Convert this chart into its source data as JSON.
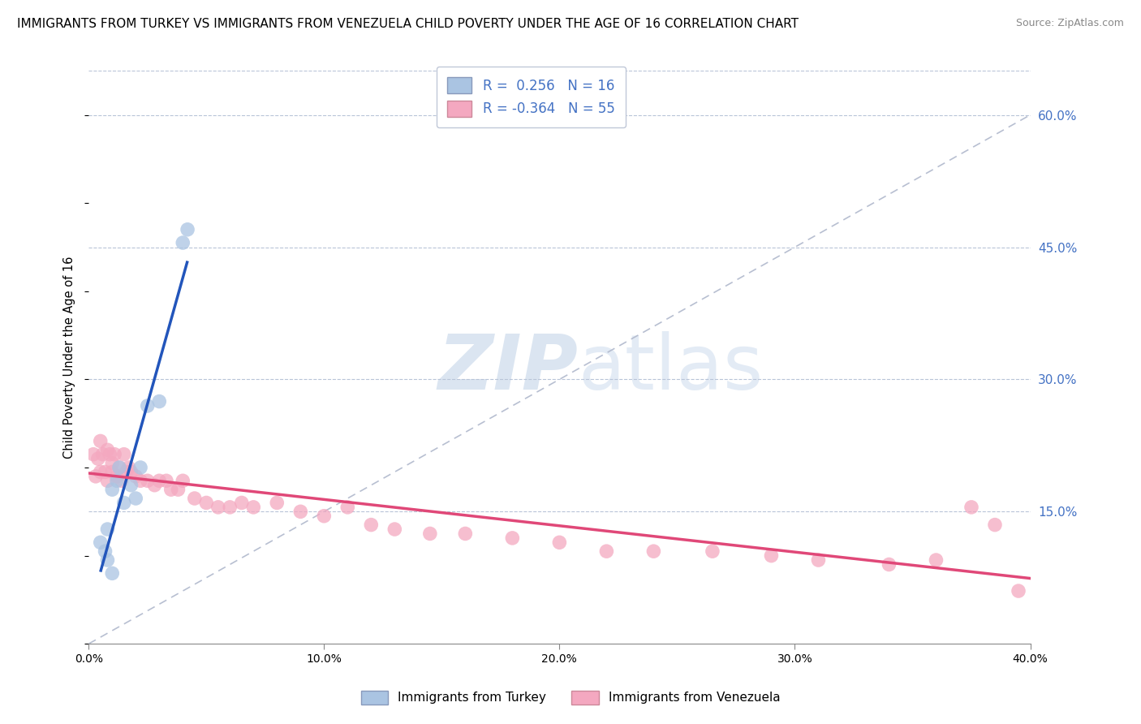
{
  "title": "IMMIGRANTS FROM TURKEY VS IMMIGRANTS FROM VENEZUELA CHILD POVERTY UNDER THE AGE OF 16 CORRELATION CHART",
  "source": "Source: ZipAtlas.com",
  "ylabel": "Child Poverty Under the Age of 16",
  "x_tick_labels": [
    "0.0%",
    "10.0%",
    "20.0%",
    "30.0%",
    "40.0%"
  ],
  "x_tick_values": [
    0.0,
    0.1,
    0.2,
    0.3,
    0.4
  ],
  "y_tick_labels": [
    "15.0%",
    "30.0%",
    "45.0%",
    "60.0%"
  ],
  "y_tick_values": [
    0.15,
    0.3,
    0.45,
    0.6
  ],
  "xlim": [
    0.0,
    0.4
  ],
  "ylim": [
    0.0,
    0.65
  ],
  "legend_labels": [
    "Immigrants from Turkey",
    "Immigrants from Venezuela"
  ],
  "legend_r_values": [
    "R =  0.256",
    "R = -0.364"
  ],
  "legend_n_values": [
    "N = 16",
    "N = 55"
  ],
  "turkey_color": "#aac4e2",
  "venezuela_color": "#f4a8c0",
  "turkey_line_color": "#2255bb",
  "venezuela_line_color": "#e04878",
  "diagonal_color": "#b0b8cc",
  "watermark_zip": "ZIP",
  "watermark_atlas": "atlas",
  "turkey_points_x": [
    0.005,
    0.007,
    0.008,
    0.01,
    0.012,
    0.013,
    0.015,
    0.018,
    0.02,
    0.022,
    0.025,
    0.03,
    0.04,
    0.042,
    0.008,
    0.01
  ],
  "turkey_points_y": [
    0.115,
    0.105,
    0.13,
    0.175,
    0.185,
    0.2,
    0.16,
    0.18,
    0.165,
    0.2,
    0.27,
    0.275,
    0.455,
    0.47,
    0.095,
    0.08
  ],
  "venezuela_points_x": [
    0.002,
    0.003,
    0.004,
    0.005,
    0.005,
    0.006,
    0.007,
    0.008,
    0.008,
    0.009,
    0.01,
    0.01,
    0.011,
    0.012,
    0.013,
    0.014,
    0.015,
    0.016,
    0.017,
    0.018,
    0.02,
    0.022,
    0.025,
    0.028,
    0.03,
    0.033,
    0.035,
    0.038,
    0.04,
    0.045,
    0.05,
    0.055,
    0.06,
    0.065,
    0.07,
    0.08,
    0.09,
    0.1,
    0.11,
    0.12,
    0.13,
    0.145,
    0.16,
    0.18,
    0.2,
    0.22,
    0.24,
    0.265,
    0.29,
    0.31,
    0.34,
    0.36,
    0.375,
    0.385,
    0.395
  ],
  "venezuela_points_y": [
    0.215,
    0.19,
    0.21,
    0.23,
    0.195,
    0.215,
    0.195,
    0.22,
    0.185,
    0.215,
    0.205,
    0.195,
    0.215,
    0.19,
    0.2,
    0.185,
    0.215,
    0.195,
    0.2,
    0.195,
    0.19,
    0.185,
    0.185,
    0.18,
    0.185,
    0.185,
    0.175,
    0.175,
    0.185,
    0.165,
    0.16,
    0.155,
    0.155,
    0.16,
    0.155,
    0.16,
    0.15,
    0.145,
    0.155,
    0.135,
    0.13,
    0.125,
    0.125,
    0.12,
    0.115,
    0.105,
    0.105,
    0.105,
    0.1,
    0.095,
    0.09,
    0.095,
    0.155,
    0.135,
    0.06
  ]
}
